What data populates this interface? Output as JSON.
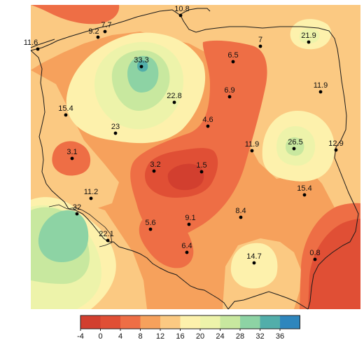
{
  "map": {
    "colors": {
      "band_m4_0": "#d23f2f",
      "band_0_4": "#e04f35",
      "band_4_8": "#ee6e45",
      "band_8_12": "#f6a15c",
      "band_12_16": "#fbc982",
      "band_16_20": "#fdf1ac",
      "band_20_24": "#edf3aa",
      "band_24_28": "#c8e89f",
      "band_28_32": "#8dd3a4",
      "band_32_36": "#52aeaa",
      "band_36_40": "#2e86bd",
      "border": "#1a1a1a",
      "background": "#ffffff"
    },
    "legend": {
      "ticks": [
        "-4",
        "0",
        "4",
        "8",
        "12",
        "16",
        "20",
        "24",
        "28",
        "32",
        "36"
      ]
    },
    "stations": [
      {
        "value": "10.8"
      },
      {
        "value": "7.7"
      },
      {
        "value": "9.2"
      },
      {
        "value": "11.6"
      },
      {
        "value": "7"
      },
      {
        "value": "21.9"
      },
      {
        "value": "33.3"
      },
      {
        "value": "6.5"
      },
      {
        "value": "22.8"
      },
      {
        "value": "6.9"
      },
      {
        "value": "11.9"
      },
      {
        "value": "15.4"
      },
      {
        "value": "4.6"
      },
      {
        "value": "23"
      },
      {
        "value": "3.1"
      },
      {
        "value": "11.9"
      },
      {
        "value": "26.5"
      },
      {
        "value": "12.9"
      },
      {
        "value": "3.2"
      },
      {
        "value": "1.5"
      },
      {
        "value": "11.2"
      },
      {
        "value": "15.4"
      },
      {
        "value": "32"
      },
      {
        "value": "8.4"
      },
      {
        "value": "9.1"
      },
      {
        "value": "5.6"
      },
      {
        "value": "22.1"
      },
      {
        "value": "6.4"
      },
      {
        "value": "14.7"
      },
      {
        "value": "0.8"
      }
    ]
  }
}
